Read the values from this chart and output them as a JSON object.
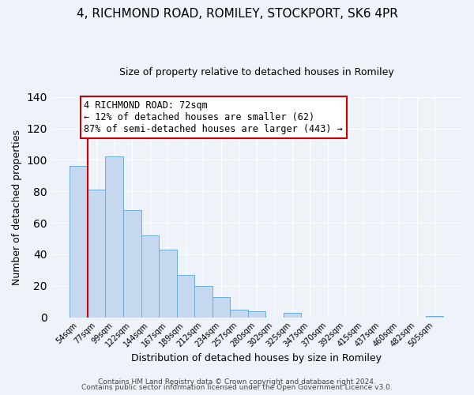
{
  "title": "4, RICHMOND ROAD, ROMILEY, STOCKPORT, SK6 4PR",
  "subtitle": "Size of property relative to detached houses in Romiley",
  "xlabel": "Distribution of detached houses by size in Romiley",
  "ylabel": "Number of detached properties",
  "footer_line1": "Contains HM Land Registry data © Crown copyright and database right 2024.",
  "footer_line2": "Contains public sector information licensed under the Open Government Licence v3.0.",
  "bar_labels": [
    "54sqm",
    "77sqm",
    "99sqm",
    "122sqm",
    "144sqm",
    "167sqm",
    "189sqm",
    "212sqm",
    "234sqm",
    "257sqm",
    "280sqm",
    "302sqm",
    "325sqm",
    "347sqm",
    "370sqm",
    "392sqm",
    "415sqm",
    "437sqm",
    "460sqm",
    "482sqm",
    "505sqm"
  ],
  "bar_values": [
    96,
    81,
    102,
    68,
    52,
    43,
    27,
    20,
    13,
    5,
    4,
    0,
    3,
    0,
    0,
    0,
    0,
    0,
    0,
    0,
    1
  ],
  "bar_color": "#c5d8ef",
  "bar_edge_color": "#6aaed6",
  "ylim": [
    0,
    140
  ],
  "yticks": [
    0,
    20,
    40,
    60,
    80,
    100,
    120,
    140
  ],
  "ann_line1": "4 RICHMOND ROAD: 72sqm",
  "ann_line2": "← 12% of detached houses are smaller (62)",
  "ann_line3": "87% of semi-detached houses are larger (443) →",
  "red_line_x": 0.5,
  "red_color": "#cc0000",
  "background_color": "#eef2f9",
  "grid_color": "#ffffff",
  "title_fontsize": 11,
  "subtitle_fontsize": 9,
  "ylabel_fontsize": 9,
  "xlabel_fontsize": 9,
  "tick_fontsize": 7,
  "footer_fontsize": 6.5,
  "ann_fontsize": 8.5
}
